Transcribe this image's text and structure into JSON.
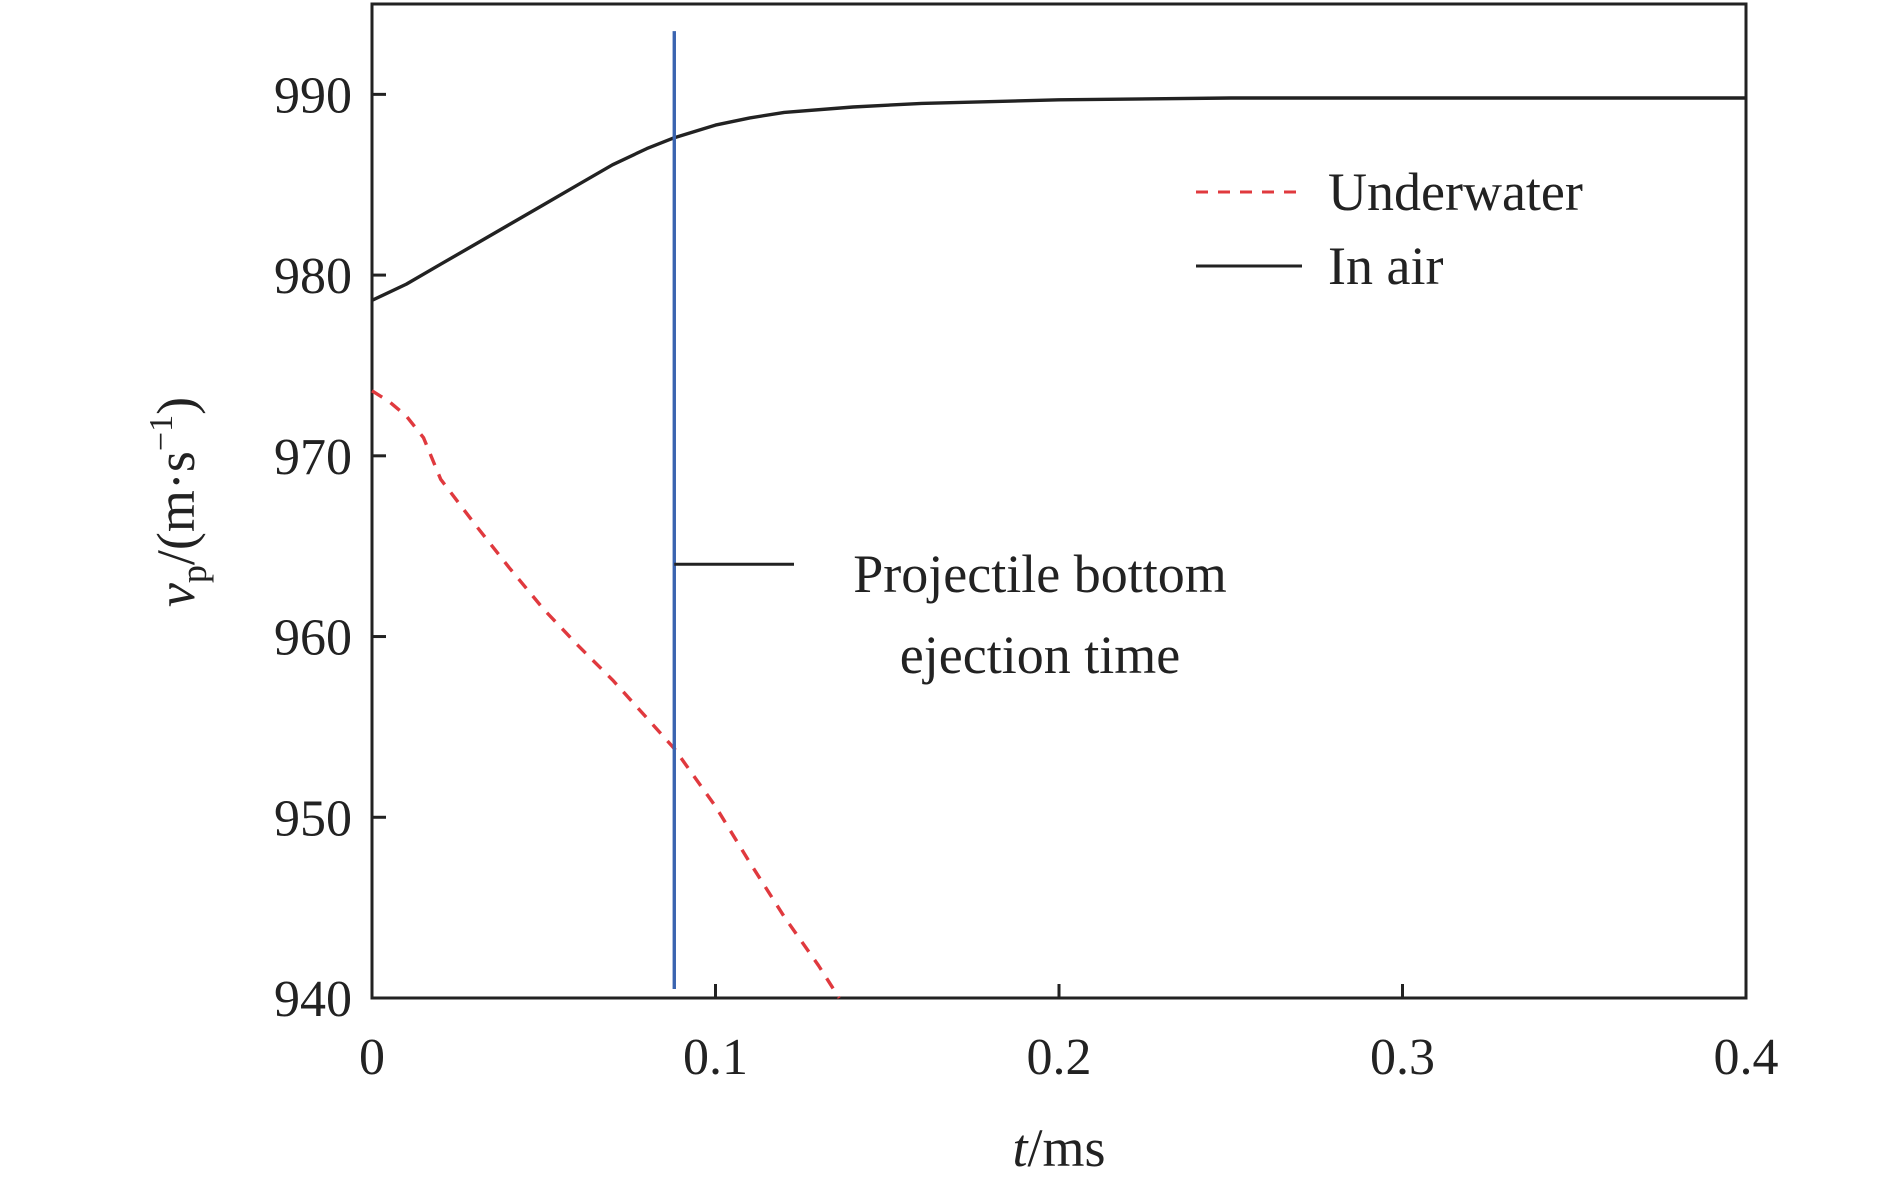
{
  "chart_data": {
    "type": "line",
    "xlabel": {
      "var": "t",
      "unit": "/ms"
    },
    "ylabel": {
      "var": "v",
      "sub": "p",
      "unit_open": "/(m·s",
      "exp": "−1",
      "unit_close": ")"
    },
    "xlim": [
      0,
      0.4
    ],
    "ylim": [
      940,
      995
    ],
    "x_ticks": [
      0,
      0.1,
      0.2,
      0.3,
      0.4
    ],
    "x_tick_labels": [
      "0",
      "0.1",
      "0.2",
      "0.3",
      "0.4"
    ],
    "y_ticks": [
      940,
      950,
      960,
      970,
      980,
      990
    ],
    "y_tick_labels": [
      "940",
      "950",
      "960",
      "970",
      "980",
      "990"
    ],
    "grid": false,
    "legend_position": "top-right",
    "series": [
      {
        "name": "Underwater",
        "color": "#e0393e",
        "dash": "dashed",
        "x": [
          0,
          0.005,
          0.01,
          0.015,
          0.02,
          0.03,
          0.04,
          0.05,
          0.06,
          0.07,
          0.08,
          0.088,
          0.1,
          0.11,
          0.12,
          0.13,
          0.136
        ],
        "y": [
          973.6,
          973.0,
          972.2,
          971.0,
          968.7,
          966.2,
          963.8,
          961.5,
          959.5,
          957.6,
          955.5,
          953.8,
          950.6,
          947.5,
          944.5,
          941.8,
          940.0
        ]
      },
      {
        "name": "In air",
        "color": "#222222",
        "dash": "solid",
        "x": [
          0,
          0.01,
          0.02,
          0.03,
          0.04,
          0.05,
          0.06,
          0.07,
          0.08,
          0.088,
          0.1,
          0.11,
          0.12,
          0.14,
          0.16,
          0.2,
          0.25,
          0.3,
          0.35,
          0.4
        ],
        "y": [
          978.6,
          979.5,
          980.6,
          981.7,
          982.8,
          983.9,
          985.0,
          986.1,
          987.0,
          987.6,
          988.3,
          988.7,
          989.0,
          989.3,
          989.5,
          989.7,
          989.8,
          989.8,
          989.8,
          989.8
        ]
      }
    ],
    "vertical_marker": {
      "x": 0.088,
      "color": "#3a64b0",
      "y_range": [
        940.5,
        993.5
      ]
    },
    "annotation": {
      "lines": [
        "Projectile bottom",
        "ejection time"
      ],
      "pointer_y": 964
    }
  }
}
